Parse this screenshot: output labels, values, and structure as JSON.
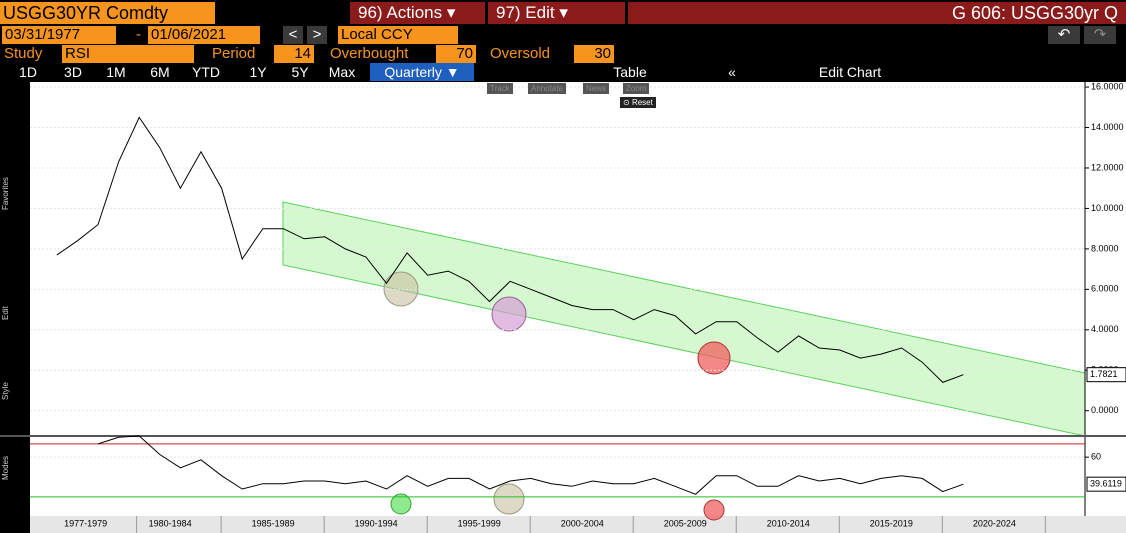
{
  "ui": {
    "ticker": "USGG30YR Comdty",
    "actions": "96) Actions",
    "edit": "97) Edit",
    "page_title": "G 606: USGG30yr Q",
    "start_date": "03/31/1977",
    "date_sep": "-",
    "end_date": "01/06/2021",
    "prev": "<",
    "next": ">",
    "currency": "Local CCY",
    "study_label": "Study",
    "study": "RSI",
    "period_label": "Period",
    "period": "14",
    "overbought_label": "Overbought",
    "overbought": "70",
    "oversold_label": "Oversold",
    "oversold": "30",
    "ranges": [
      "1D",
      "3D",
      "1M",
      "6M",
      "YTD",
      "1Y",
      "5Y",
      "Max"
    ],
    "frequency": "Quarterly",
    "table": "Table",
    "collapse": "«",
    "edit_chart": "Edit Chart",
    "tools": [
      "Track",
      "Annotate",
      "News",
      "Zoom"
    ],
    "reset": "Reset",
    "sidebar": [
      "Favorites",
      "Edit",
      "Style",
      "Modes"
    ]
  },
  "chart_data": [
    {
      "type": "line",
      "name": "USGG30YR",
      "x": [
        1977,
        1978,
        1979,
        1980,
        1981,
        1982,
        1983,
        1984,
        1985,
        1986,
        1987,
        1988,
        1989,
        1990,
        1991,
        1992,
        1993,
        1994,
        1995,
        1996,
        1997,
        1998,
        1999,
        2000,
        2001,
        2002,
        2003,
        2004,
        2005,
        2006,
        2007,
        2008,
        2009,
        2010,
        2011,
        2012,
        2013,
        2014,
        2015,
        2016,
        2017,
        2018,
        2019,
        2020,
        2021
      ],
      "values": [
        7.7,
        8.4,
        9.2,
        12.3,
        14.5,
        13.0,
        11.0,
        12.8,
        11.0,
        7.5,
        9.0,
        9.0,
        8.5,
        8.6,
        8.0,
        7.6,
        6.3,
        7.8,
        6.7,
        6.9,
        6.4,
        5.4,
        6.4,
        6.0,
        5.6,
        5.2,
        5.0,
        5.0,
        4.5,
        5.0,
        4.7,
        3.8,
        4.4,
        4.4,
        3.6,
        2.9,
        3.7,
        3.1,
        3.0,
        2.6,
        2.8,
        3.1,
        2.4,
        1.4,
        1.78
      ],
      "color": "#000000",
      "last_value": {
        "value": 1.7821,
        "label": "1.7821"
      },
      "xlim": [
        1975.7,
        2026.9
      ],
      "ylim": [
        -1.2,
        16.25
      ],
      "yticks": [
        {
          "value": 0,
          "label": "0.0000"
        },
        {
          "value": 2,
          "label": "2.0000"
        },
        {
          "value": 4,
          "label": "4.0000"
        },
        {
          "value": 6,
          "label": "6.0000"
        },
        {
          "value": 8,
          "label": "8.0000"
        },
        {
          "value": 10,
          "label": "10.0000"
        },
        {
          "value": 12,
          "label": "12.0000"
        },
        {
          "value": 14,
          "label": "14.0000"
        },
        {
          "value": 16,
          "label": "16.0000"
        }
      ],
      "xticks": [
        {
          "value": 1978.4,
          "label": "1977-1979"
        },
        {
          "value": 1982.5,
          "label": "1980-1984"
        },
        {
          "value": 1987.5,
          "label": "1985-1989"
        },
        {
          "value": 1992.5,
          "label": "1990-1994"
        },
        {
          "value": 1997.5,
          "label": "1995-1999"
        },
        {
          "value": 2002.5,
          "label": "2000-2004"
        },
        {
          "value": 2007.5,
          "label": "2005-2009"
        },
        {
          "value": 2012.5,
          "label": "2010-2014"
        },
        {
          "value": 2017.5,
          "label": "2015-2019"
        },
        {
          "value": 2022.5,
          "label": "2020-2024"
        }
      ]
    },
    {
      "type": "line",
      "name": "RSI",
      "x": [
        1977,
        1978,
        1979,
        1980,
        1981,
        1982,
        1983,
        1984,
        1985,
        1986,
        1987,
        1988,
        1989,
        1990,
        1991,
        1992,
        1993,
        1994,
        1995,
        1996,
        1997,
        1998,
        1999,
        2000,
        2001,
        2002,
        2003,
        2004,
        2005,
        2006,
        2007,
        2008,
        2009,
        2010,
        2011,
        2012,
        2013,
        2014,
        2015,
        2016,
        2017,
        2018,
        2019,
        2020,
        2021
      ],
      "values": [
        null,
        null,
        70,
        75,
        76,
        62,
        52,
        58,
        46,
        36,
        40,
        40,
        42,
        42,
        40,
        42,
        36,
        46,
        38,
        44,
        44,
        36,
        42,
        44,
        40,
        38,
        42,
        40,
        40,
        44,
        38,
        32,
        46,
        46,
        38,
        38,
        46,
        42,
        44,
        40,
        44,
        46,
        44,
        34,
        39.6
      ],
      "color": "#000000",
      "last_value": {
        "value": 39.6119,
        "label": "39.6119"
      },
      "overbought": 70,
      "oversold": 30,
      "xlim": [
        1975.7,
        2026.9
      ],
      "ylim": [
        15.6,
        75.2
      ],
      "yticks": [
        60
      ]
    }
  ]
}
